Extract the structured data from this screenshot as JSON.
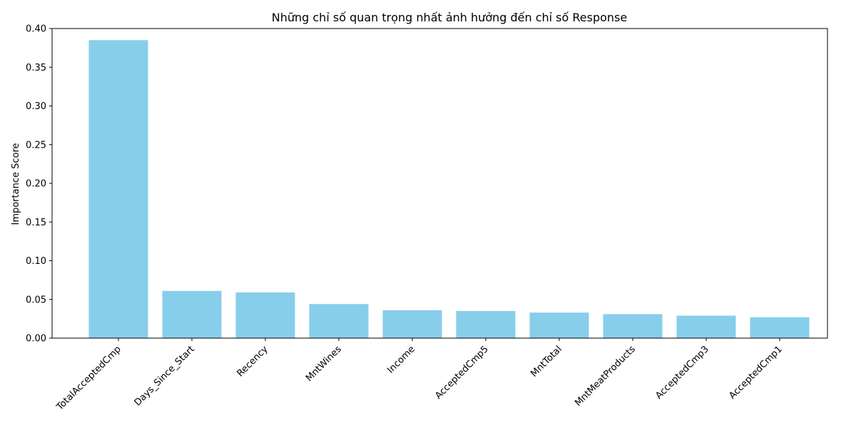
{
  "chart_data": {
    "type": "bar",
    "title": "Những chỉ số quan trọng nhất ảnh hưởng đến chỉ số Response",
    "xlabel": "",
    "ylabel": "Importance Score",
    "categories": [
      "TotalAcceptedCmp",
      "Days_Since_Start",
      "Recency",
      "MntWines",
      "Income",
      "AcceptedCmp5",
      "MntTotal",
      "MntMeatProducts",
      "AcceptedCmp3",
      "AcceptedCmp1"
    ],
    "values": [
      0.385,
      0.061,
      0.059,
      0.044,
      0.036,
      0.035,
      0.033,
      0.031,
      0.029,
      0.027
    ],
    "ylim": [
      0,
      0.4
    ],
    "yticks": [
      "0.00",
      "0.05",
      "0.10",
      "0.15",
      "0.20",
      "0.25",
      "0.30",
      "0.35",
      "0.40"
    ],
    "bar_color": "#87CEEB",
    "grid": false,
    "legend": "none"
  }
}
